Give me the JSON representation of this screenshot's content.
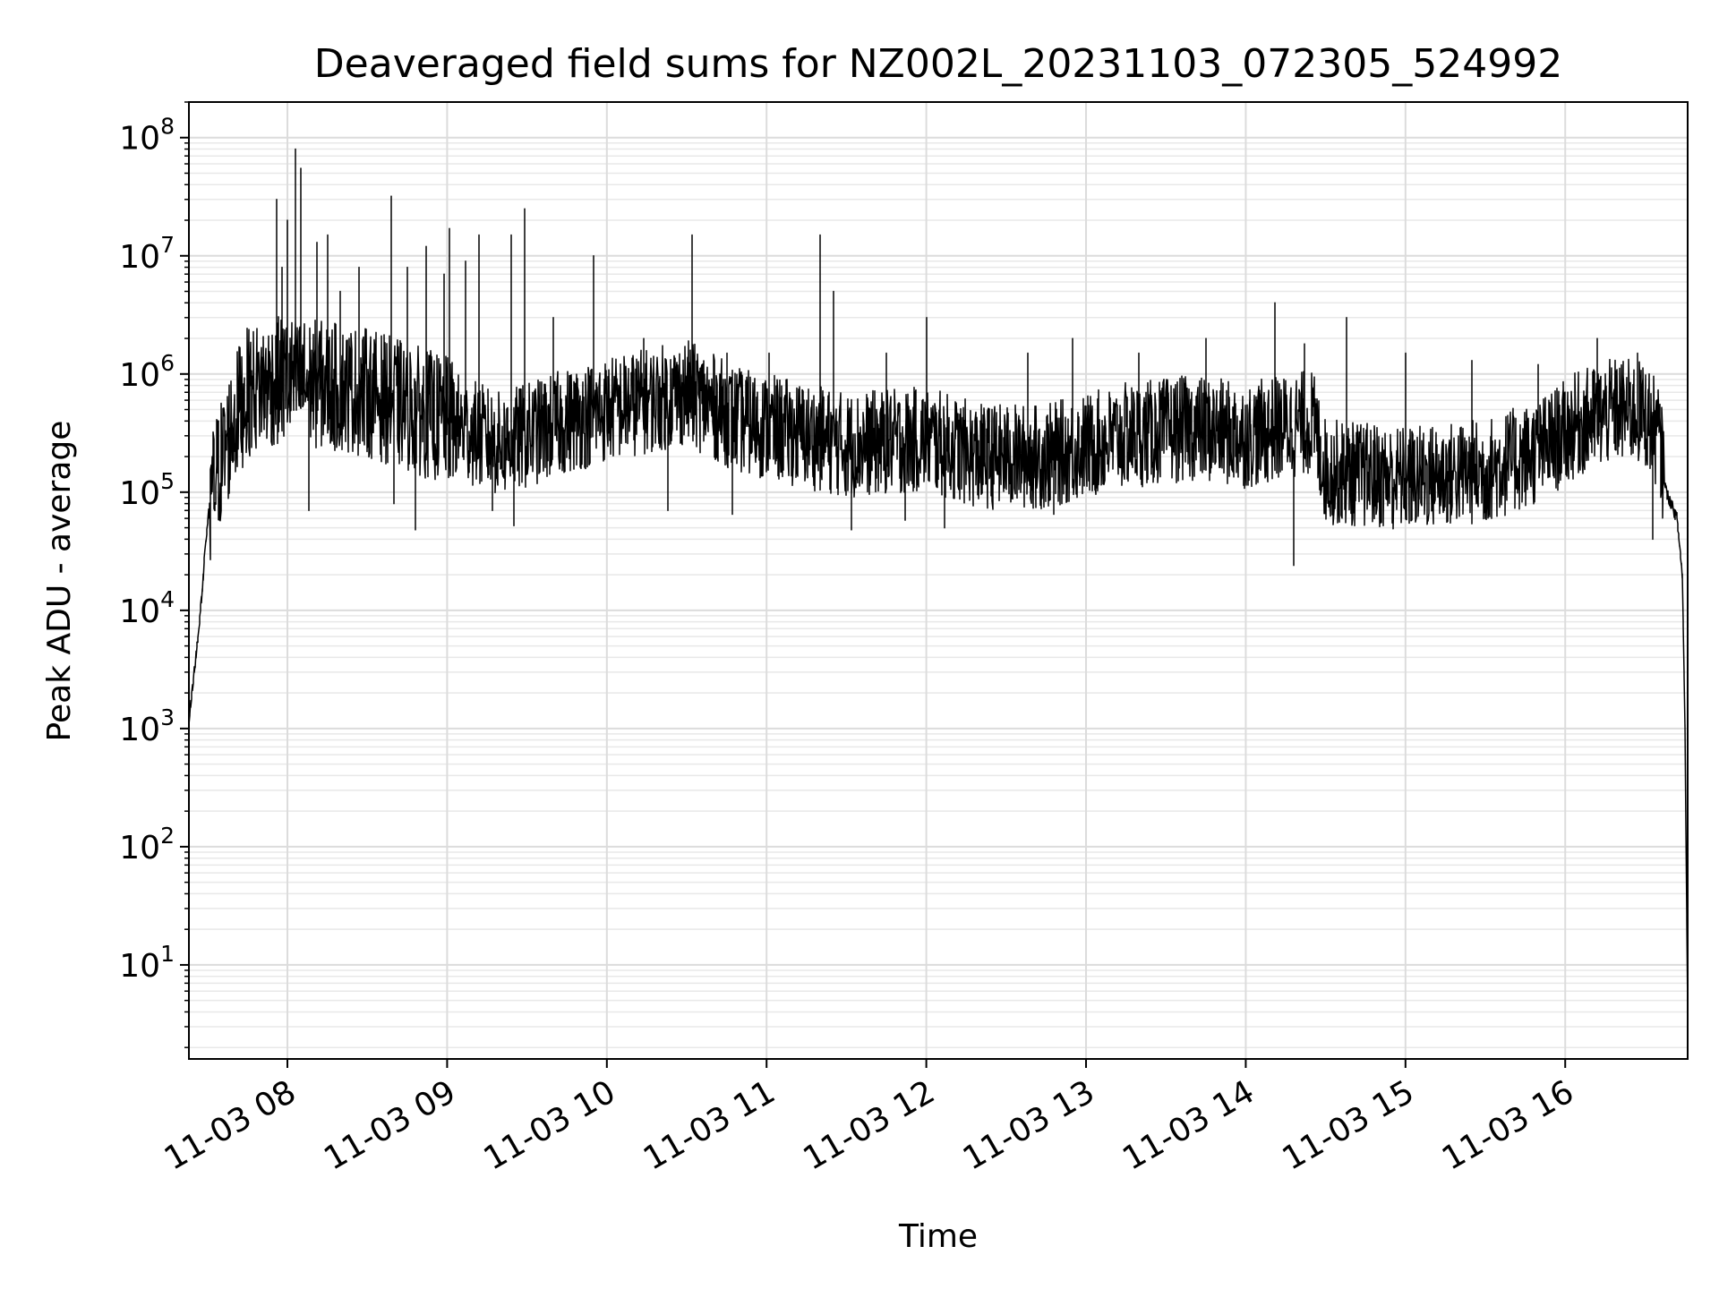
{
  "chart_data": {
    "type": "line",
    "title": "Deaveraged field sums for NZ002L_20231103_072305_524992",
    "xlabel": "Time",
    "ylabel": "Peak ADU - average",
    "yscale": "log",
    "ylim": [
      1.6,
      200000000
    ],
    "xlim": [
      "2023-11-03 07:23",
      "2023-11-03 16:46"
    ],
    "grid": true,
    "x_ticks": [
      {
        "t": "2023-11-03 08:00",
        "label": "11-03 08"
      },
      {
        "t": "2023-11-03 09:00",
        "label": "11-03 09"
      },
      {
        "t": "2023-11-03 10:00",
        "label": "11-03 10"
      },
      {
        "t": "2023-11-03 11:00",
        "label": "11-03 11"
      },
      {
        "t": "2023-11-03 12:00",
        "label": "11-03 12"
      },
      {
        "t": "2023-11-03 13:00",
        "label": "11-03 13"
      },
      {
        "t": "2023-11-03 14:00",
        "label": "11-03 14"
      },
      {
        "t": "2023-11-03 15:00",
        "label": "11-03 15"
      },
      {
        "t": "2023-11-03 16:00",
        "label": "11-03 16"
      }
    ],
    "y_ticks": [
      {
        "value": 10,
        "mant": "10",
        "exp": "1"
      },
      {
        "value": 100,
        "mant": "10",
        "exp": "2"
      },
      {
        "value": 1000,
        "mant": "10",
        "exp": "3"
      },
      {
        "value": 10000,
        "mant": "10",
        "exp": "4"
      },
      {
        "value": 100000,
        "mant": "10",
        "exp": "5"
      },
      {
        "value": 1000000,
        "mant": "10",
        "exp": "6"
      },
      {
        "value": 10000000,
        "mant": "10",
        "exp": "7"
      },
      {
        "value": 100000000,
        "mant": "10",
        "exp": "8"
      }
    ],
    "series": [
      {
        "color": "#000000",
        "baseline": [
          [
            "2023-11-03 07:23",
            1200
          ],
          [
            "2023-11-03 07:25",
            3000
          ],
          [
            "2023-11-03 07:27",
            8000
          ],
          [
            "2023-11-03 07:29",
            30000
          ],
          [
            "2023-11-03 07:31",
            90000
          ],
          [
            "2023-11-03 07:35",
            180000
          ],
          [
            "2023-11-03 07:40",
            400000
          ],
          [
            "2023-11-03 07:45",
            700000
          ],
          [
            "2023-11-03 07:50",
            800000
          ],
          [
            "2023-11-03 08:00",
            900000
          ],
          [
            "2023-11-03 08:30",
            700000
          ],
          [
            "2023-11-03 09:00",
            400000
          ],
          [
            "2023-11-03 09:20",
            250000
          ],
          [
            "2023-11-03 09:45",
            400000
          ],
          [
            "2023-11-03 10:00",
            500000
          ],
          [
            "2023-11-03 10:30",
            700000
          ],
          [
            "2023-11-03 10:50",
            400000
          ],
          [
            "2023-11-03 11:15",
            300000
          ],
          [
            "2023-11-03 11:30",
            250000
          ],
          [
            "2023-11-03 12:00",
            280000
          ],
          [
            "2023-11-03 12:20",
            200000
          ],
          [
            "2023-11-03 12:45",
            200000
          ],
          [
            "2023-11-03 13:15",
            300000
          ],
          [
            "2023-11-03 13:40",
            350000
          ],
          [
            "2023-11-03 14:00",
            300000
          ],
          [
            "2023-11-03 14:25",
            400000
          ],
          [
            "2023-11-03 14:30",
            150000
          ],
          [
            "2023-11-03 15:00",
            130000
          ],
          [
            "2023-11-03 15:30",
            150000
          ],
          [
            "2023-11-03 15:50",
            220000
          ],
          [
            "2023-11-03 16:05",
            380000
          ],
          [
            "2023-11-03 16:20",
            500000
          ],
          [
            "2023-11-03 16:30",
            450000
          ],
          [
            "2023-11-03 16:35",
            300000
          ],
          [
            "2023-11-03 16:38",
            100000
          ],
          [
            "2023-11-03 16:42",
            60000
          ],
          [
            "2023-11-03 16:44",
            20000
          ],
          [
            "2023-11-03 16:45",
            1000
          ],
          [
            "2023-11-03 16:46",
            4
          ]
        ],
        "spikes": [
          [
            "2023-11-03 07:34",
            400000
          ],
          [
            "2023-11-03 07:42",
            1700000
          ],
          [
            "2023-11-03 07:49",
            1500000
          ],
          [
            "2023-11-03 07:53",
            1100000
          ],
          [
            "2023-11-03 07:56",
            30000000
          ],
          [
            "2023-11-03 07:58",
            8000000
          ],
          [
            "2023-11-03 08:00",
            20000000
          ],
          [
            "2023-11-03 08:03",
            80000000
          ],
          [
            "2023-11-03 08:05",
            55000000
          ],
          [
            "2023-11-03 08:08",
            14000000
          ],
          [
            "2023-11-03 08:11",
            13000000
          ],
          [
            "2023-11-03 08:15",
            15000000
          ],
          [
            "2023-11-03 08:20",
            5000000
          ],
          [
            "2023-11-03 08:27",
            8000000
          ],
          [
            "2023-11-03 08:39",
            32000000
          ],
          [
            "2023-11-03 08:45",
            8000000
          ],
          [
            "2023-11-03 08:52",
            12000000
          ],
          [
            "2023-11-03 08:59",
            7000000
          ],
          [
            "2023-11-03 09:01",
            17000000
          ],
          [
            "2023-11-03 09:07",
            9000000
          ],
          [
            "2023-11-03 09:12",
            15000000
          ],
          [
            "2023-11-03 09:24",
            15000000
          ],
          [
            "2023-11-03 09:29",
            25000000
          ],
          [
            "2023-11-03 09:40",
            3000000
          ],
          [
            "2023-11-03 09:55",
            10000000
          ],
          [
            "2023-11-03 10:14",
            2000000
          ],
          [
            "2023-11-03 10:32",
            15000000
          ],
          [
            "2023-11-03 10:45",
            1500000
          ],
          [
            "2023-11-03 11:01",
            1500000
          ],
          [
            "2023-11-03 11:20",
            15000000
          ],
          [
            "2023-11-03 11:25",
            5000000
          ],
          [
            "2023-11-03 11:45",
            1500000
          ],
          [
            "2023-11-03 12:00",
            3000000
          ],
          [
            "2023-11-03 12:38",
            1500000
          ],
          [
            "2023-11-03 12:55",
            2000000
          ],
          [
            "2023-11-03 13:20",
            1500000
          ],
          [
            "2023-11-03 13:45",
            2000000
          ],
          [
            "2023-11-03 14:11",
            4000000
          ],
          [
            "2023-11-03 14:22",
            1800000
          ],
          [
            "2023-11-03 14:38",
            3000000
          ],
          [
            "2023-11-03 15:00",
            1500000
          ],
          [
            "2023-11-03 15:25",
            1300000
          ],
          [
            "2023-11-03 15:50",
            1200000
          ],
          [
            "2023-11-03 16:12",
            2000000
          ],
          [
            "2023-11-03 16:27",
            1500000
          ]
        ],
        "dips": [
          [
            "2023-11-03 07:38",
            100000
          ],
          [
            "2023-11-03 08:08",
            70000
          ],
          [
            "2023-11-03 08:40",
            80000
          ],
          [
            "2023-11-03 08:48",
            48000
          ],
          [
            "2023-11-03 09:17",
            70000
          ],
          [
            "2023-11-03 09:25",
            52000
          ],
          [
            "2023-11-03 10:23",
            70000
          ],
          [
            "2023-11-03 10:47",
            65000
          ],
          [
            "2023-11-03 11:32",
            48000
          ],
          [
            "2023-11-03 11:52",
            58000
          ],
          [
            "2023-11-03 12:07",
            50000
          ],
          [
            "2023-11-03 12:48",
            65000
          ],
          [
            "2023-11-03 14:18",
            24000
          ],
          [
            "2023-11-03 14:55",
            55000
          ],
          [
            "2023-11-03 15:30",
            60000
          ],
          [
            "2023-11-03 16:33",
            40000
          ]
        ]
      }
    ]
  }
}
